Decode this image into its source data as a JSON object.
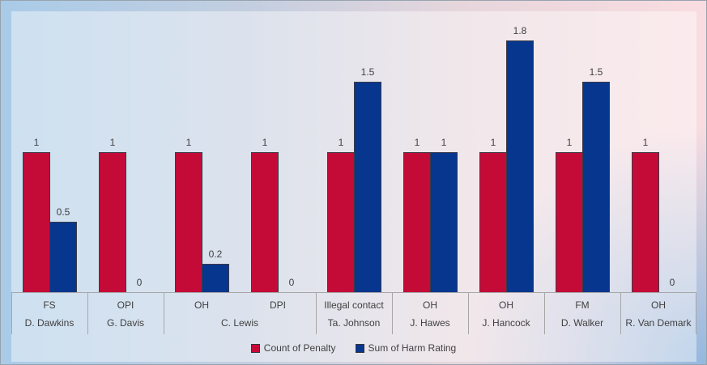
{
  "chart_data": {
    "type": "bar",
    "title": "",
    "xlabel": "",
    "ylabel": "",
    "ylim": [
      0,
      2
    ],
    "grid": false,
    "legend_position": "bottom",
    "data_labels": true,
    "categories": [
      {
        "penalty": "FS",
        "player": "D. Dawkins"
      },
      {
        "penalty": "OPI",
        "player": "G. Davis"
      },
      {
        "penalty": "OH",
        "player": "C. Lewis"
      },
      {
        "penalty": "DPI",
        "player": "C. Lewis"
      },
      {
        "penalty": "Illegal contact",
        "player": "Ta. Johnson"
      },
      {
        "penalty": "OH",
        "player": "J. Hawes"
      },
      {
        "penalty": "OH",
        "player": "J. Hancock"
      },
      {
        "penalty": "FM",
        "player": "D. Walker"
      },
      {
        "penalty": "OH",
        "player": "R. Van Demark"
      }
    ],
    "series": [
      {
        "name": "Count of Penalty",
        "color": "#C40B38",
        "values": [
          1,
          1,
          1,
          1,
          1,
          1,
          1,
          1,
          1
        ]
      },
      {
        "name": "Sum of Harm Rating",
        "color": "#07368E",
        "values": [
          0.5,
          0,
          0.2,
          0,
          1.5,
          1,
          1.8,
          1.5,
          0
        ]
      }
    ]
  },
  "colors": {
    "bar_outline": "#3B3B47",
    "axis_line": "#A6A6A6",
    "text": "#404040",
    "background_left": "#A9CBE8",
    "background_right": "#F9DCE0"
  }
}
